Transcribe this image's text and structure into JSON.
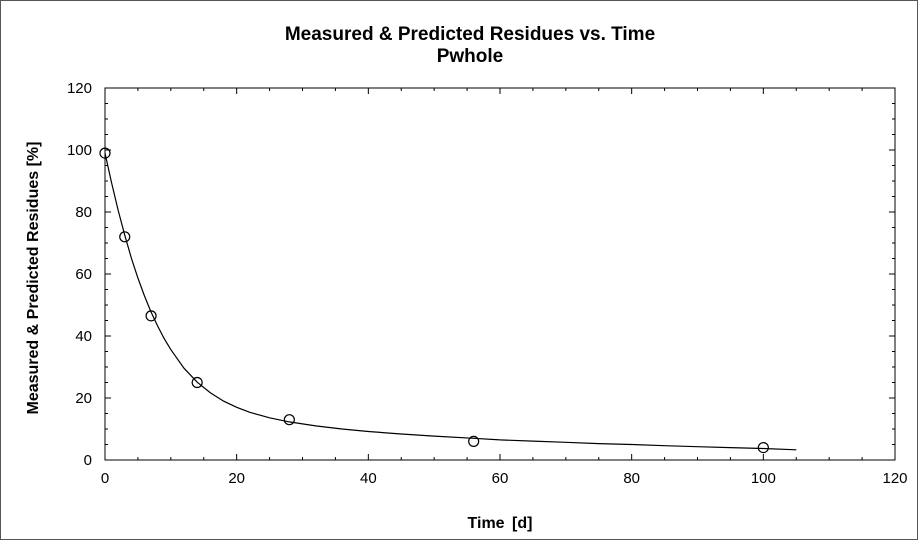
{
  "chart_data": {
    "type": "scatter",
    "title": "Measured & Predicted Residues vs. Time",
    "subtitle": "Pwhole",
    "xlabel": "Time",
    "xunit": "[d]",
    "ylabel": "Measured & Predicted Residues [%]",
    "xlim": [
      0,
      120
    ],
    "ylim": [
      0,
      120
    ],
    "xticks": [
      0,
      20,
      40,
      60,
      80,
      100,
      120
    ],
    "yticks": [
      0,
      20,
      40,
      60,
      80,
      100,
      120
    ],
    "grid": false,
    "series": [
      {
        "kind": "scatter",
        "marker": "circle-open",
        "x": [
          0,
          3,
          7,
          14,
          28,
          56,
          100
        ],
        "y": [
          99,
          72,
          46.5,
          25,
          13,
          6,
          4
        ]
      },
      {
        "kind": "line",
        "x": [
          0,
          1,
          2,
          3,
          4,
          5,
          6,
          7,
          8,
          9,
          10,
          12,
          14,
          16,
          18,
          20,
          22,
          25,
          28,
          32,
          36,
          40,
          45,
          50,
          56,
          60,
          65,
          70,
          75,
          80,
          85,
          90,
          95,
          100,
          105
        ],
        "y": [
          99,
          89.4,
          80.5,
          72.5,
          65.2,
          58.7,
          52.9,
          47.7,
          43.2,
          39.1,
          35.6,
          29.6,
          25.1,
          21.7,
          19.0,
          17.0,
          15.4,
          13.6,
          12.3,
          11.0,
          10.0,
          9.2,
          8.4,
          7.7,
          7.0,
          6.5,
          6.1,
          5.7,
          5.3,
          5.0,
          4.6,
          4.3,
          4.0,
          3.7,
          3.3
        ]
      }
    ]
  }
}
